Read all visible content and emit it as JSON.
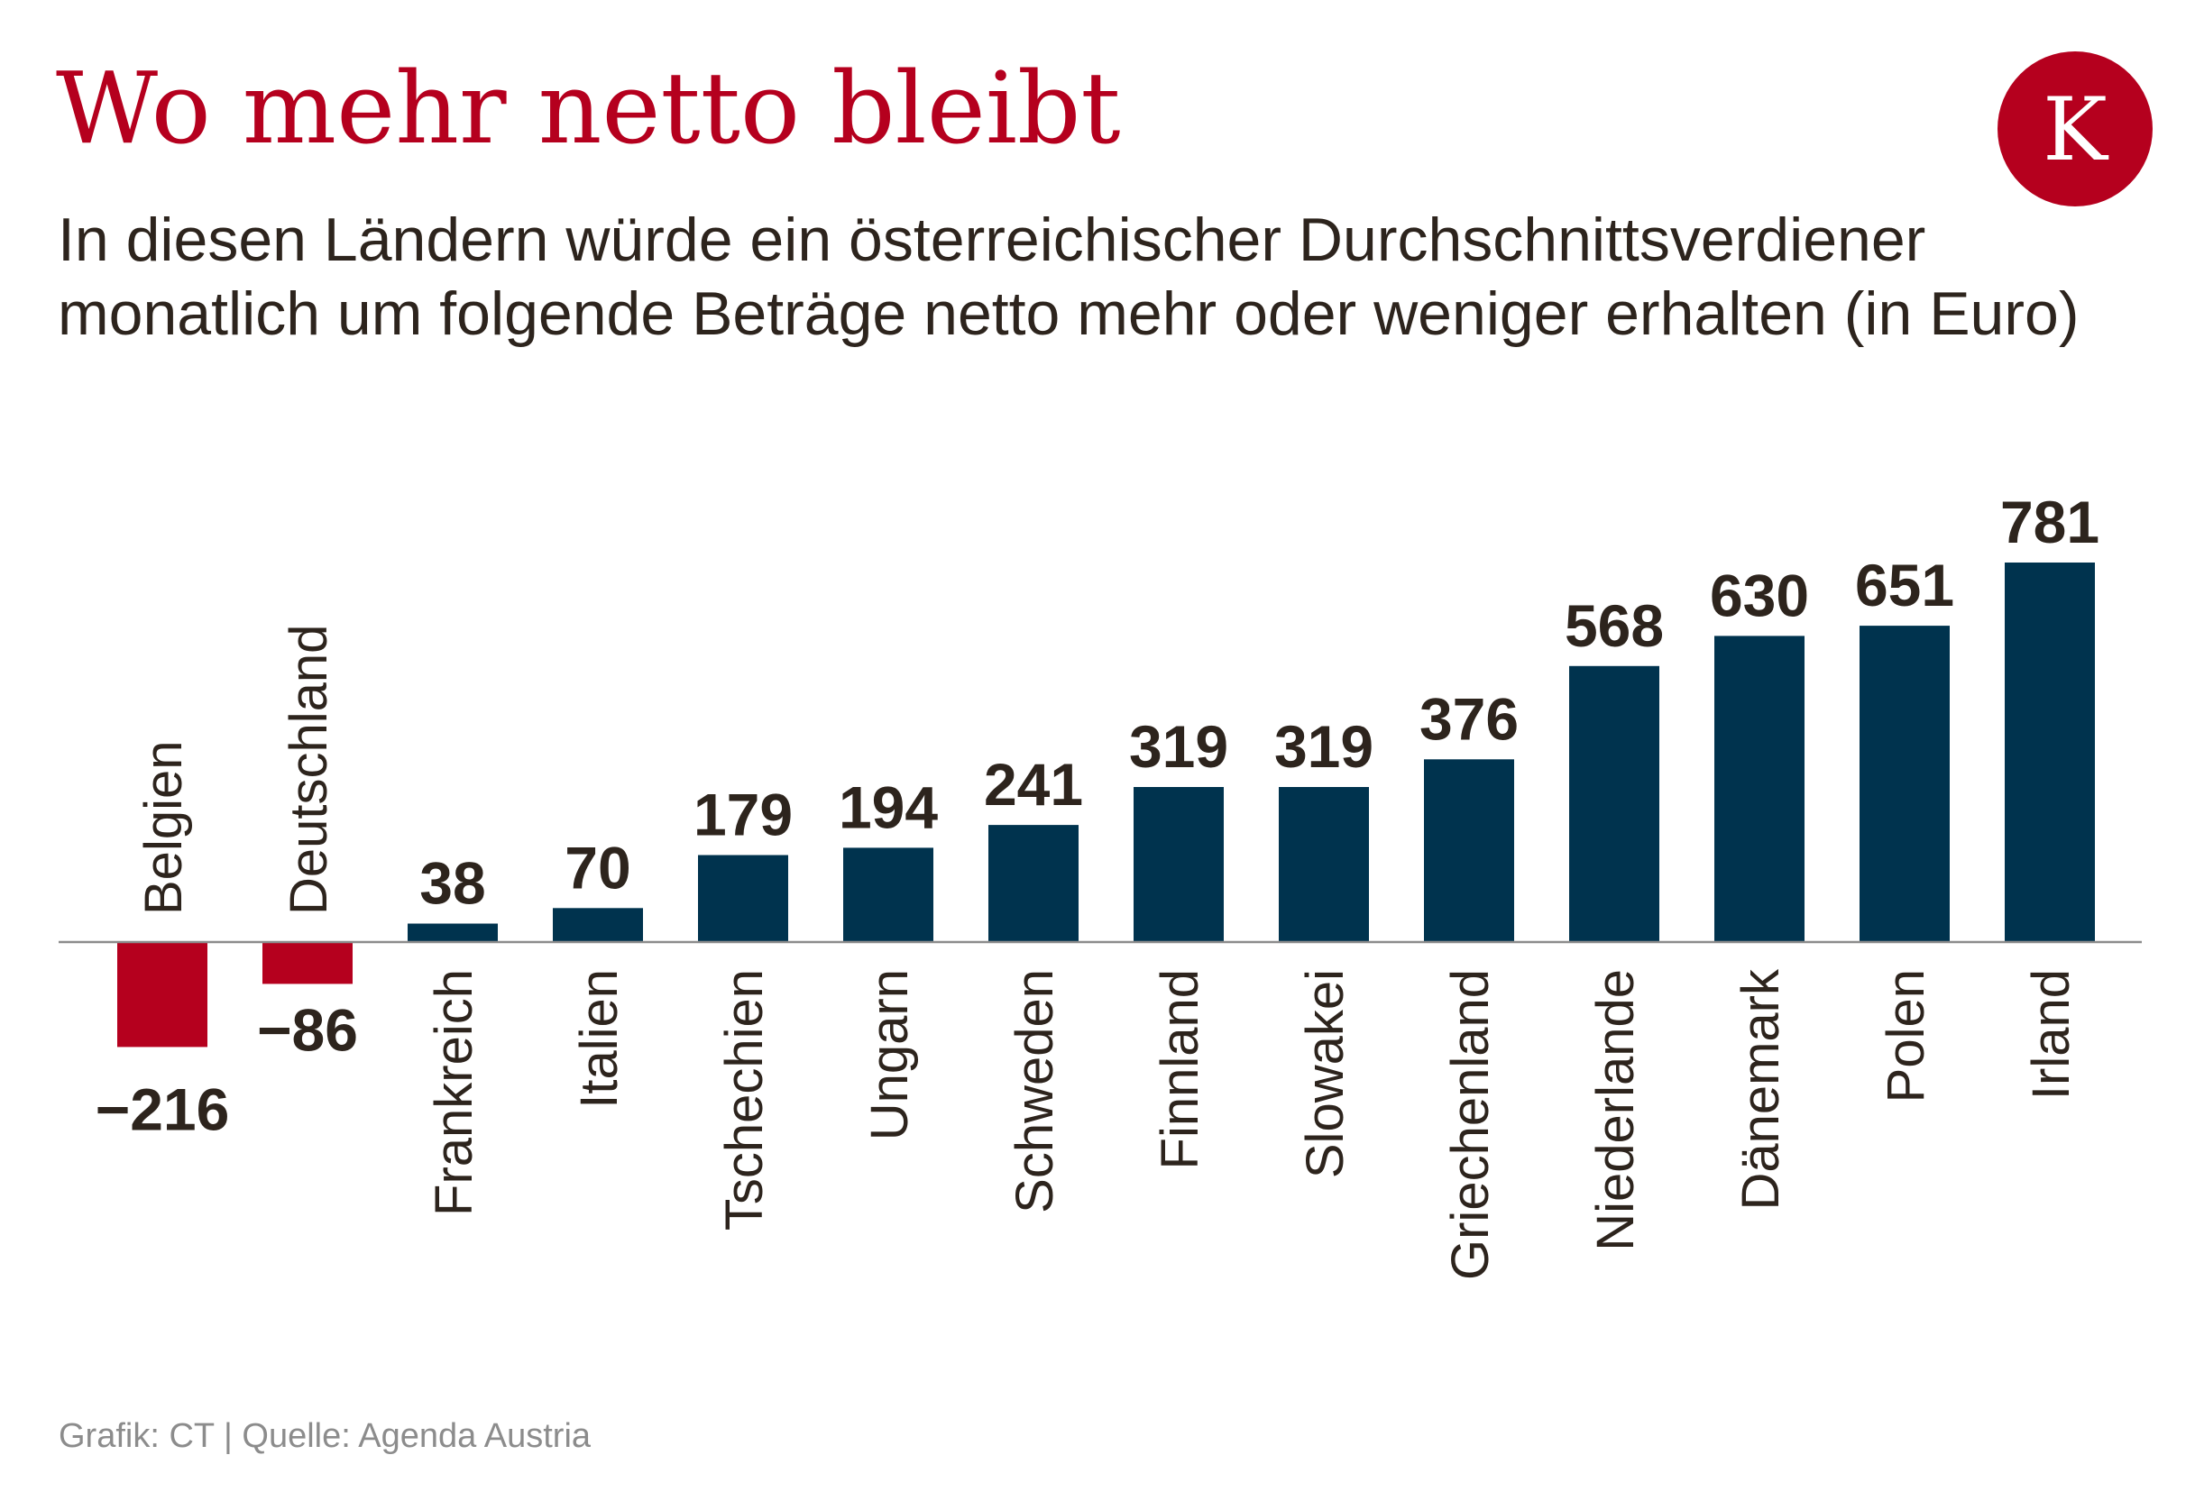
{
  "header": {
    "title": "Wo mehr netto bleibt",
    "subtitle": "In diesen Ländern würde ein österreichischer Durchschnittsverdiener monatlich um folgende Beträge netto mehr oder weniger erhalten (in Euro)"
  },
  "logo": {
    "letter": "K",
    "color": "#b5001e",
    "icon": "kleine-zeitung-k-logo-icon"
  },
  "footer": {
    "source": "Grafik: CT | Quelle: Agenda Austria"
  },
  "colors": {
    "positive": "#00334e",
    "negative": "#b5001e",
    "text": "#2d241d",
    "baseline": "#8c8c8c"
  },
  "chart_data": {
    "type": "bar",
    "title": "Wo mehr netto bleibt",
    "subtitle": "In diesen Ländern würde ein österreichischer Durchschnittsverdiener monatlich um folgende Beträge netto mehr oder weniger erhalten (in Euro)",
    "xlabel": "",
    "ylabel": "",
    "categories": [
      "Belgien",
      "Deutschland",
      "Frankreich",
      "Italien",
      "Tschechien",
      "Ungarn",
      "Schweden",
      "Finnland",
      "Slowakei",
      "Griechenland",
      "Niederlande",
      "Dänemark",
      "Polen",
      "Irland"
    ],
    "values": [
      -216,
      -86,
      38,
      70,
      179,
      194,
      241,
      319,
      319,
      376,
      568,
      630,
      651,
      781
    ],
    "value_labels": [
      "−216",
      "−86",
      "38",
      "70",
      "179",
      "194",
      "241",
      "319",
      "319",
      "376",
      "568",
      "630",
      "651",
      "781"
    ],
    "ylim": [
      -216,
      781
    ],
    "grid": false,
    "legend": "none",
    "orientation": "vertical"
  }
}
